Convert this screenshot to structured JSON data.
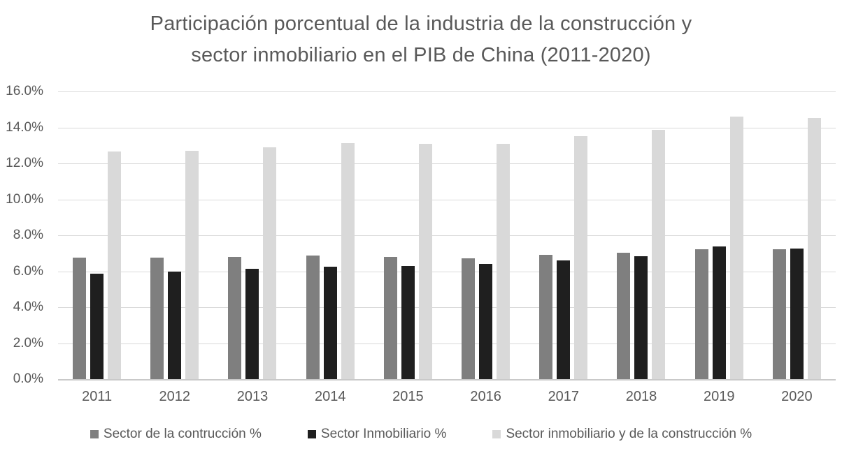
{
  "chart_data": {
    "type": "bar",
    "title_line1": "Participación porcentual de la industria de la construcción y",
    "title_line2": "sector inmobiliario en el PIB de China (2011-2020)",
    "categories": [
      "2011",
      "2012",
      "2013",
      "2014",
      "2015",
      "2016",
      "2017",
      "2018",
      "2019",
      "2020"
    ],
    "series": [
      {
        "key": "construccion",
        "name": "Sector de la contrucción %",
        "color": "#7f7f7f",
        "values": [
          6.75,
          6.75,
          6.8,
          6.88,
          6.8,
          6.7,
          6.93,
          7.03,
          7.23,
          7.23
        ]
      },
      {
        "key": "inmobiliario",
        "name": "Sector Inmobiliario %",
        "color": "#1f1f1f",
        "values": [
          5.88,
          5.98,
          6.12,
          6.25,
          6.31,
          6.4,
          6.59,
          6.82,
          7.38,
          7.27
        ]
      },
      {
        "key": "inmobiliario-y-construccion",
        "name": "Sector inmobiliario y de la construcción %",
        "color": "#d9d9d9",
        "values": [
          12.65,
          12.7,
          12.9,
          13.14,
          13.08,
          13.08,
          13.51,
          13.87,
          14.6,
          14.52
        ]
      }
    ],
    "ylabel": "",
    "xlabel": "",
    "ylim": [
      0,
      16
    ],
    "ytick_step": 2,
    "ytick_labels": [
      "0.0%",
      "2.0%",
      "4.0%",
      "6.0%",
      "8.0%",
      "10.0%",
      "12.0%",
      "14.0%",
      "16.0%"
    ],
    "grid": true,
    "legend_position": "bottom"
  },
  "colors": {
    "text": "#595959",
    "gridline": "#d9d9d9",
    "axis_line": "#c9c9c9",
    "background": "#ffffff"
  }
}
